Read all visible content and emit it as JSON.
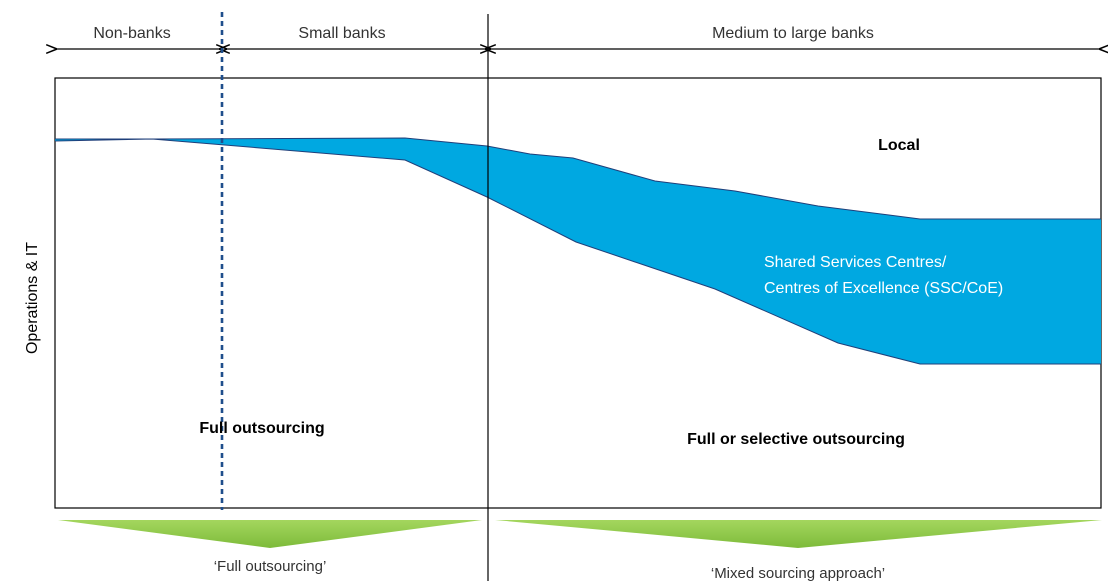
{
  "segments": {
    "non_banks": "Non-banks",
    "small_banks": "Small banks",
    "medium_large_banks": "Medium to large banks"
  },
  "y_axis_label": "Operations & IT",
  "regions": {
    "local": "Local",
    "ssc_line1": "Shared Services Centres/",
    "ssc_line2": "Centres of Excellence (SSC/CoE)",
    "full_outsourcing": "Full outsourcing",
    "full_or_selective": "Full or selective outsourcing"
  },
  "approaches": {
    "left": "‘Full outsourcing’",
    "right": "‘Mixed sourcing approach’"
  },
  "colors": {
    "band": "#00A8E1",
    "band_outline": "#1F3F7A",
    "arrow_green": "#8DC63F",
    "divider_dotted": "#1F4E8C"
  }
}
